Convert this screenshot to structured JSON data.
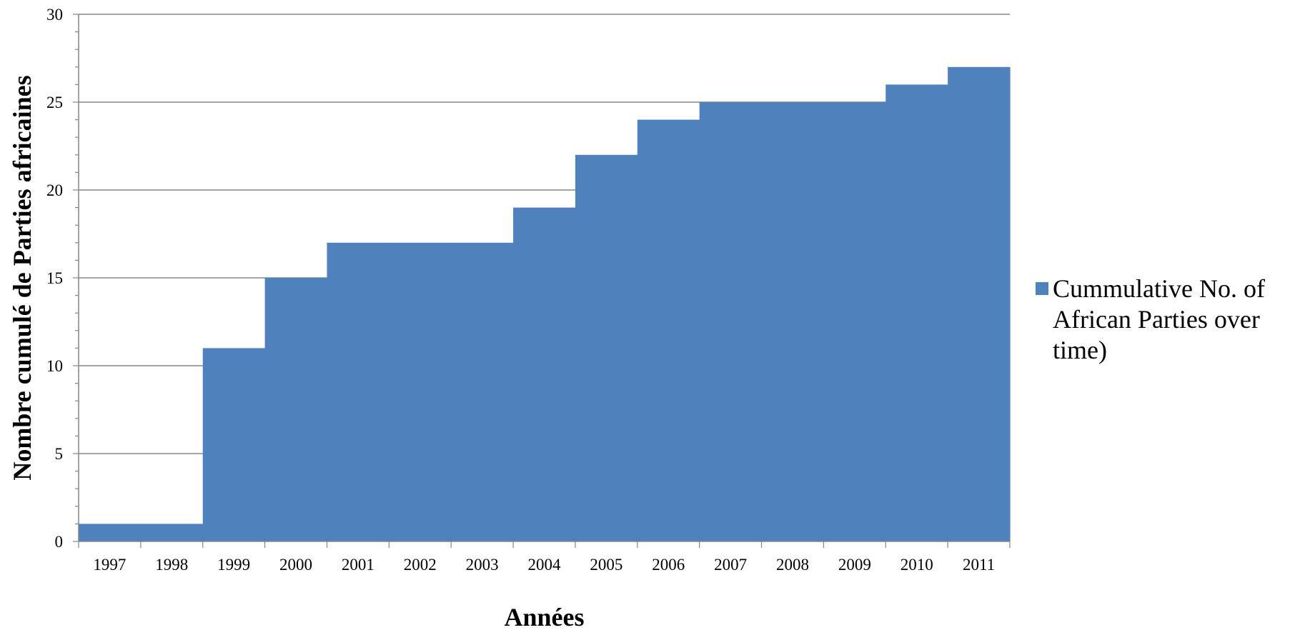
{
  "chart_data": {
    "type": "area",
    "step": true,
    "xlabel": "Années",
    "ylabel": "Nombre cumulé de Parties africaines",
    "categories": [
      "1997",
      "1998",
      "1999",
      "2000",
      "2001",
      "2002",
      "2003",
      "2004",
      "2005",
      "2006",
      "2007",
      "2008",
      "2009",
      "2010",
      "2011"
    ],
    "series": [
      {
        "name": "Cummulative No. of African Parties over time)",
        "values": [
          1,
          1,
          11,
          15,
          17,
          17,
          17,
          19,
          22,
          24,
          25,
          25,
          25,
          26,
          27
        ],
        "color": "#4F81BD"
      }
    ],
    "ylim": [
      0,
      30
    ],
    "yticks": [
      0,
      5,
      10,
      15,
      20,
      25,
      30
    ],
    "yminor_step": 1,
    "grid": true,
    "legend_position": "right"
  }
}
